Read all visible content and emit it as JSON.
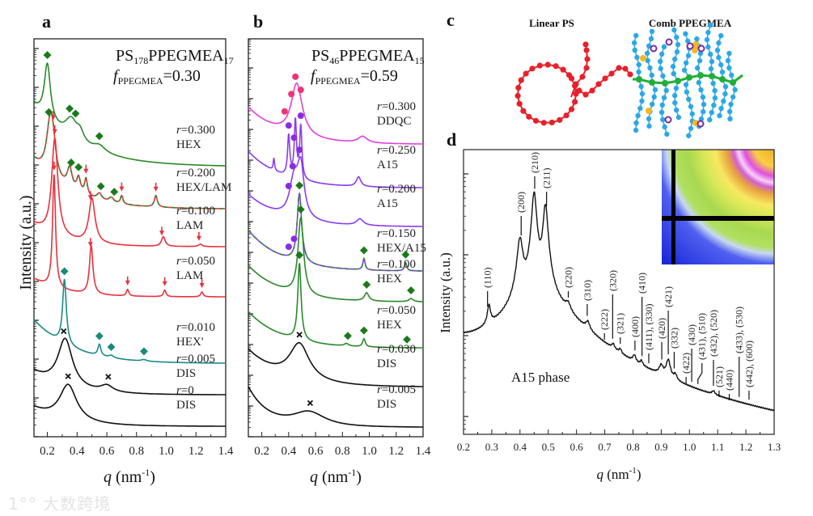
{
  "figure": {
    "panel_letters": [
      "a",
      "b",
      "c",
      "d"
    ],
    "watermark": {
      "logo": "1°°",
      "text": "大数跨境"
    }
  },
  "symbols": {
    "r": "r",
    "f": "f"
  },
  "chart_data": [
    {
      "id": "a",
      "type": "line",
      "title": {
        "p1": "PS",
        "s1": "178",
        "p2": "PPEGMEA",
        "s2": "17"
      },
      "subtitle": {
        "f": "f",
        "sub": "PPEGMEA",
        "val": "=0.30"
      },
      "ylabel": "Intensity (a.u.)",
      "xlabel": {
        "q": "q",
        "unit": " (nm",
        "exp": "-1",
        "close": ")"
      },
      "x_ticks": [
        "0.2",
        "0.4",
        "0.6",
        "0.8",
        "1.0",
        "1.2",
        "1.4"
      ],
      "xlim": [
        0.11,
        1.4
      ],
      "yscale": "log, stacked (arbitrary units)",
      "series": [
        {
          "r": "=0.300",
          "phase": "HEX",
          "color": "#2a8a2a",
          "bg": [
            70,
            0.3
          ],
          "peaks": [
            [
              0.2,
              70,
              0.025
            ],
            [
              0.36,
              25,
              0.05
            ],
            [
              0.42,
              12,
              0.03
            ],
            [
              0.55,
              8,
              0.05
            ]
          ],
          "markers": [
            [
              0.2,
              "diamond"
            ],
            [
              0.35,
              "diamond"
            ],
            [
              0.39,
              "diamond"
            ],
            [
              0.55,
              "diamond"
            ]
          ]
        },
        {
          "r": "=0.200",
          "phase": "HEX/LAM",
          "color": "#e8323c",
          "color2": "#2a8a2a",
          "bg": [
            55,
            0.25
          ],
          "peaks": [
            [
              0.22,
              70,
              0.03
            ],
            [
              0.24,
              20,
              0.02
            ],
            [
              0.35,
              25,
              0.02
            ],
            [
              0.41,
              18,
              0.015
            ],
            [
              0.46,
              20,
              0.012
            ],
            [
              0.55,
              8,
              0.02
            ],
            [
              0.63,
              6,
              0.02
            ],
            [
              0.7,
              10,
              0.01
            ],
            [
              0.93,
              14,
              0.012
            ]
          ],
          "markers": [
            [
              0.21,
              "diamond"
            ],
            [
              0.24,
              "arrow"
            ],
            [
              0.36,
              "diamond"
            ],
            [
              0.41,
              "diamond"
            ],
            [
              0.46,
              "arrow"
            ],
            [
              0.56,
              "diamond"
            ],
            [
              0.65,
              "diamond"
            ],
            [
              0.7,
              "arrow"
            ],
            [
              0.93,
              "arrow"
            ]
          ]
        },
        {
          "r": "=0.100",
          "phase": "LAM",
          "color": "#e8323c",
          "bg": [
            25,
            0.2
          ],
          "peaks": [
            [
              0.25,
              120,
              0.025
            ],
            [
              0.5,
              55,
              0.025
            ],
            [
              0.98,
              12,
              0.015
            ],
            [
              1.23,
              3,
              0.015
            ]
          ],
          "markers": [
            [
              0.25,
              "arrow"
            ],
            [
              0.49,
              "arrow"
            ],
            [
              0.97,
              "arrow"
            ],
            [
              1.22,
              "arrow"
            ]
          ]
        },
        {
          "r": "=0.050",
          "phase": "LAM",
          "color": "#e8323c",
          "bg": [
            20,
            0.2
          ],
          "peaks": [
            [
              0.245,
              140,
              0.012
            ],
            [
              0.495,
              60,
              0.014
            ],
            [
              0.74,
              8,
              0.01
            ],
            [
              0.99,
              8,
              0.01
            ],
            [
              1.24,
              6,
              0.01
            ]
          ],
          "markers": [
            [
              0.245,
              "arrow"
            ],
            [
              0.49,
              "arrow"
            ],
            [
              0.74,
              "arrow"
            ],
            [
              0.99,
              "arrow"
            ],
            [
              1.24,
              "arrow"
            ]
          ]
        },
        {
          "r": "=0.010",
          "phase": "HEX'",
          "color": "#1a8a8a",
          "bg": [
            50,
            0.25
          ],
          "peaks": [
            [
              0.315,
              80,
              0.015
            ],
            [
              0.55,
              14,
              0.012
            ],
            [
              0.63,
              3,
              0.02
            ],
            [
              0.85,
              2,
              0.02
            ]
          ],
          "markers": [
            [
              0.315,
              "diamond-teal"
            ],
            [
              0.55,
              "diamond-teal"
            ],
            [
              0.63,
              "diamond-teal"
            ],
            [
              0.85,
              "diamond-teal"
            ]
          ]
        },
        {
          "r": "=0.005",
          "phase": "DIS",
          "color": "#111111",
          "bg": [
            25,
            0.2
          ],
          "peaks": [
            [
              0.32,
              60,
              0.06
            ],
            [
              0.6,
              8,
              0.05
            ]
          ],
          "markers": [
            [
              0.31,
              "x"
            ],
            [
              0.61,
              "x"
            ]
          ]
        },
        {
          "r": "=0",
          "phase": "DIS",
          "color": "#111111",
          "bg": [
            20,
            0.2
          ],
          "peaks": [
            [
              0.34,
              45,
              0.07
            ]
          ],
          "markers": [
            [
              0.34,
              "x"
            ]
          ]
        }
      ]
    },
    {
      "id": "b",
      "type": "line",
      "title": {
        "p1": "PS",
        "s1": "46",
        "p2": "PPEGMEA",
        "s2": "15"
      },
      "subtitle": {
        "f": "f",
        "sub": "PPEGMEA",
        "val": "=0.59"
      },
      "xlabel": {
        "q": "q",
        "unit": " (nm",
        "exp": "-1",
        "close": ")"
      },
      "x_ticks": [
        "0.2",
        "0.4",
        "0.6",
        "0.8",
        "1.0",
        "1.2",
        "1.4"
      ],
      "xlim": [
        0.1,
        1.4
      ],
      "yscale": "log, stacked (arbitrary units)",
      "series": [
        {
          "r": "=0.300",
          "phase": "DDQC",
          "color": "#e040e0",
          "bg": [
            40,
            0.25
          ],
          "peaks": [
            [
              0.46,
              65,
              0.05
            ],
            [
              0.95,
              8,
              0.04
            ]
          ],
          "markers": [
            [
              0.37,
              "circle-pink"
            ],
            [
              0.42,
              "circle-pink"
            ],
            [
              0.45,
              "circle-pink"
            ],
            [
              0.49,
              "circle-pink"
            ]
          ]
        },
        {
          "r": "=0.250",
          "phase": "A15",
          "color": "#8a3cf0",
          "bg": [
            40,
            0.25
          ],
          "peaks": [
            [
              0.4,
              50,
              0.01
            ],
            [
              0.45,
              70,
              0.01
            ],
            [
              0.49,
              65,
              0.01
            ],
            [
              0.29,
              15,
              0.006
            ],
            [
              0.92,
              12,
              0.02
            ]
          ],
          "markers": [
            [
              0.4,
              "circle"
            ],
            [
              0.44,
              "circle"
            ],
            [
              0.49,
              "circle"
            ]
          ]
        },
        {
          "r": "=0.200",
          "phase": "A15",
          "color": "#8a3cf0",
          "bg": [
            35,
            0.25
          ],
          "peaks": [
            [
              0.44,
              45,
              0.04
            ],
            [
              0.49,
              60,
              0.03
            ],
            [
              0.93,
              8,
              0.03
            ]
          ],
          "markers": [
            [
              0.4,
              "circle"
            ],
            [
              0.43,
              "circle"
            ],
            [
              0.48,
              "circle"
            ]
          ]
        },
        {
          "r": "=0.150",
          "phase": "HEX/A15",
          "color": "#8a3cf0",
          "color2": "#2a8a2a",
          "bg": [
            45,
            0.25
          ],
          "peaks": [
            [
              0.48,
              85,
              0.02
            ],
            [
              0.96,
              14,
              0.01
            ],
            [
              1.27,
              10,
              0.01
            ]
          ],
          "markers": [
            [
              0.4,
              "circle"
            ],
            [
              0.44,
              "circle"
            ],
            [
              0.48,
              "diamond"
            ],
            [
              0.96,
              "diamond"
            ],
            [
              1.27,
              "diamond"
            ]
          ]
        },
        {
          "r": "=0.100",
          "phase": "HEX",
          "color": "#2a8a2a",
          "bg": [
            40,
            0.25
          ],
          "peaks": [
            [
              0.49,
              95,
              0.025
            ],
            [
              0.98,
              10,
              0.02
            ],
            [
              1.31,
              4,
              0.02
            ]
          ],
          "markers": [
            [
              0.49,
              "diamond"
            ],
            [
              0.98,
              "diamond"
            ],
            [
              1.31,
              "diamond"
            ]
          ]
        },
        {
          "r": "=0.050",
          "phase": "HEX",
          "color": "#2a8a2a",
          "bg": [
            40,
            0.25
          ],
          "peaks": [
            [
              0.48,
              95,
              0.015
            ],
            [
              0.83,
              3,
              0.02
            ],
            [
              0.96,
              10,
              0.012
            ]
          ],
          "markers": [
            [
              0.48,
              "diamond"
            ],
            [
              0.84,
              "diamond"
            ],
            [
              0.96,
              "diamond"
            ],
            [
              1.28,
              "diamond"
            ]
          ]
        },
        {
          "r": "=0.030",
          "phase": "DIS",
          "color": "#111111",
          "bg": [
            40,
            0.25
          ],
          "peaks": [
            [
              0.48,
              45,
              0.09
            ]
          ],
          "markers": [
            [
              0.48,
              "x"
            ]
          ]
        },
        {
          "r": "=0.005",
          "phase": "DIS",
          "color": "#111111",
          "bg": [
            40,
            0.15
          ],
          "peaks": [
            [
              0.55,
              18,
              0.15
            ]
          ],
          "markers": [
            [
              0.56,
              "x"
            ]
          ]
        }
      ]
    },
    {
      "id": "d",
      "type": "line",
      "ylabel": "Intensity (a.u.)",
      "xlabel": {
        "q": "q",
        "unit": " (nm",
        "exp": "-1",
        "close": ")"
      },
      "x_ticks": [
        "0.2",
        "0.3",
        "0.4",
        "0.5",
        "0.6",
        "0.7",
        "0.8",
        "0.9",
        "1.0",
        "1.1",
        "1.2",
        "1.3"
      ],
      "xlim": [
        0.2,
        1.3
      ],
      "yscale": "log",
      "annotation": "A15 phase",
      "background": {
        "amp": 5,
        "power": 1.29,
        "broad": [
          0.47,
          20,
          0.15
        ]
      },
      "peaks": [
        [
          0.29,
          10,
          0.006
        ],
        [
          0.4,
          130,
          0.01
        ],
        [
          0.45,
          560,
          0.008
        ],
        [
          0.49,
          380,
          0.008
        ],
        [
          0.57,
          5,
          0.01
        ],
        [
          0.64,
          3,
          0.008
        ],
        [
          0.73,
          1,
          0.006
        ],
        [
          0.755,
          0.8,
          0.005
        ],
        [
          0.805,
          1,
          0.006
        ],
        [
          0.83,
          0.6,
          0.005
        ],
        [
          0.9,
          1,
          0.008
        ],
        [
          0.925,
          2,
          0.008
        ],
        [
          0.95,
          0.5,
          0.006
        ],
        [
          1.085,
          0.2,
          0.006
        ]
      ],
      "reflections": [
        {
          "label": "(110)",
          "q": 0.285
        },
        {
          "label": "(200)",
          "q": 0.404
        },
        {
          "label": "(210)",
          "q": 0.452
        },
        {
          "label": "(211)",
          "q": 0.494
        },
        {
          "label": "(220)",
          "q": 0.571
        },
        {
          "label": "(310)",
          "q": 0.638
        },
        {
          "label": "(222)",
          "q": 0.699
        },
        {
          "label": "(320)",
          "q": 0.728
        },
        {
          "label": "(321)",
          "q": 0.755
        },
        {
          "label": "(400)",
          "q": 0.807
        },
        {
          "label": "(410)",
          "q": 0.832
        },
        {
          "label": "(411), (330)",
          "q": 0.856
        },
        {
          "label": "(420)",
          "q": 0.902
        },
        {
          "label": "(421)",
          "q": 0.925
        },
        {
          "label": "(332)",
          "q": 0.946
        },
        {
          "label": "(422)",
          "q": 0.988
        },
        {
          "label": "(430)",
          "q": 1.008
        },
        {
          "label": "(431), (510)",
          "q": 1.03
        },
        {
          "label": "(432), (520)",
          "q": 1.085
        },
        {
          "label": "(521)",
          "q": 1.105
        },
        {
          "label": "(440)",
          "q": 1.141
        },
        {
          "label": "(433), (530)",
          "q": 1.176
        },
        {
          "label": "(442), (600)",
          "q": 1.211
        }
      ]
    }
  ],
  "schematic": {
    "left_label": "Linear PS",
    "right_label": "Comb PPEGMEA"
  },
  "colors": {
    "ps": "#e8202a",
    "backbone": "#1fae3a",
    "sidechain": "#2aa8e8",
    "ion": "#f5b820",
    "ring": "#7a2aa0"
  }
}
